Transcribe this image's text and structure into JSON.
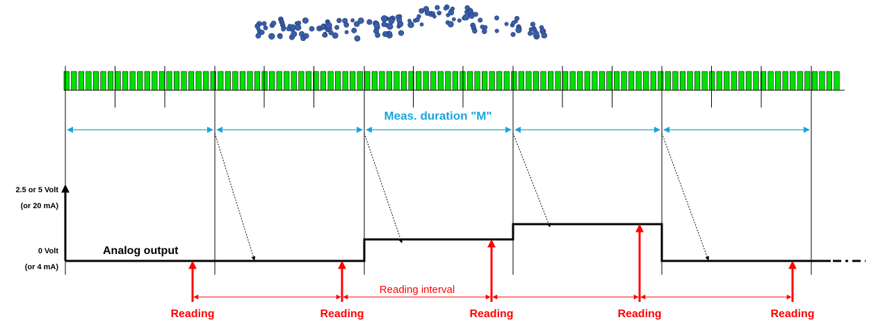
{
  "labels": {
    "duration": "Meas. duration \"M\"",
    "y_top": "2.5 or 5 Volt",
    "y_top_sub": "(or 20 mA)",
    "y_zero": "0 Volt",
    "y_zero_sub": "(or 4 mA)",
    "output": "Analog output",
    "interval": "Reading interval"
  },
  "readings": [
    "Reading",
    "Reading",
    "Reading",
    "Reading",
    "Reading"
  ]
}
